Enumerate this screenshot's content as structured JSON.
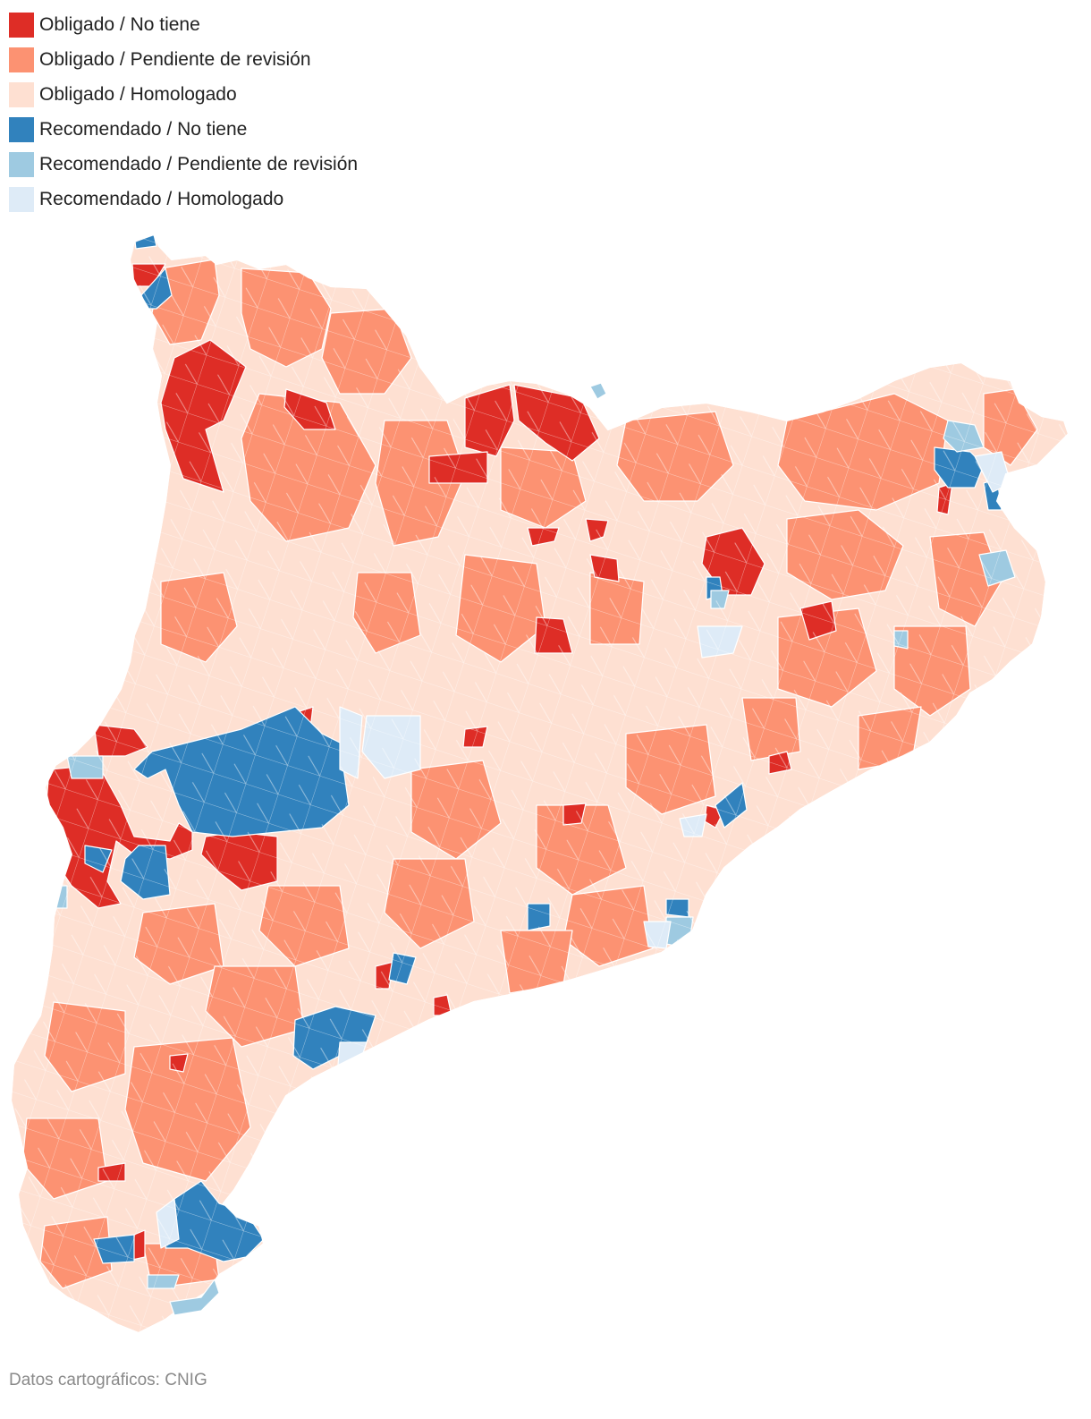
{
  "legend": [
    {
      "label": "Obligado / No tiene",
      "color": "#de2d26"
    },
    {
      "label": "Obligado / Pendiente de revisión",
      "color": "#fc9272"
    },
    {
      "label": "Obligado / Homologado",
      "color": "#fee0d2"
    },
    {
      "label": "Recomendado / No tiene",
      "color": "#3182bd"
    },
    {
      "label": "Recomendado / Pendiente de revisión",
      "color": "#9ecae1"
    },
    {
      "label": "Recomendado / Homologado",
      "color": "#deebf7"
    }
  ],
  "source": "Datos cartográficos: CNIG"
}
